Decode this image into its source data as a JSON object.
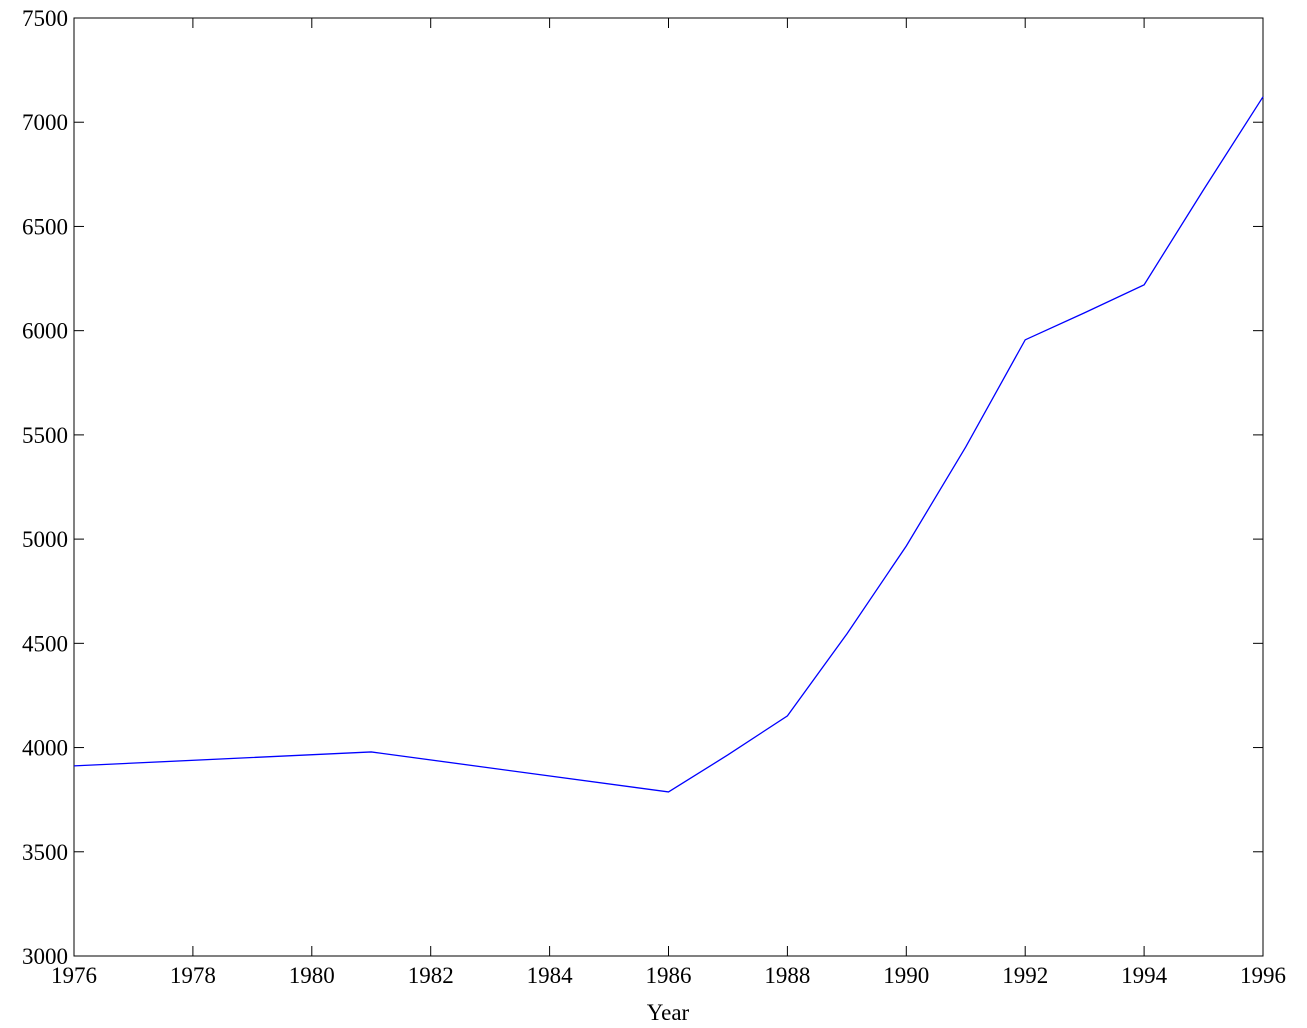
{
  "chart_data": {
    "type": "line",
    "xlabel": "Year",
    "x": [
      1976,
      1981,
      1986,
      1987,
      1988,
      1989,
      1990,
      1991,
      1992,
      1993,
      1994,
      1995,
      1996
    ],
    "series": [
      {
        "color": "#0000ff",
        "values": [
          3912,
          3979,
          3787,
          3965,
          4152,
          4545,
          4967,
          5442,
          5956,
          6086,
          6220,
          6676,
          7122
        ]
      }
    ],
    "xlim": [
      1976,
      1996
    ],
    "xticks": [
      1976,
      1978,
      1980,
      1982,
      1984,
      1986,
      1988,
      1990,
      1992,
      1994,
      1996
    ],
    "ylim": [
      3000,
      7500
    ],
    "yticks": [
      3000,
      3500,
      4000,
      4500,
      5000,
      5500,
      6000,
      6500,
      7000,
      7500
    ],
    "grid": false
  }
}
